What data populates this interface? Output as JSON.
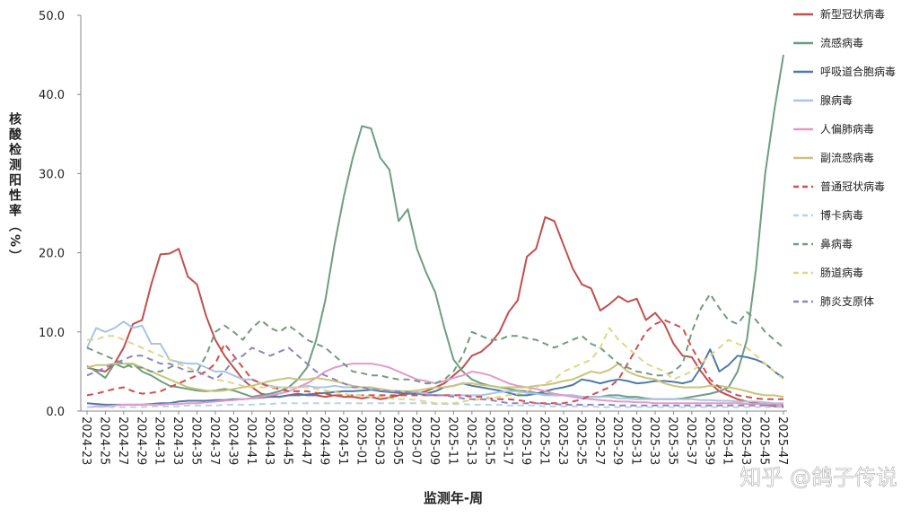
{
  "chart_data": {
    "type": "line",
    "y_label": "核酸检测阳性率（%）",
    "x_label": "监测年-周",
    "watermark": "知乎 @鸽子传说",
    "categories": [
      "2024-23",
      null,
      "2024-25",
      null,
      "2024-27",
      null,
      "2024-29",
      null,
      "2024-31",
      null,
      "2024-33",
      null,
      "2024-35",
      null,
      "2024-37",
      null,
      "2024-39",
      null,
      "2024-41",
      null,
      "2024-43",
      null,
      "2024-45",
      null,
      "2024-47",
      null,
      "2024-49",
      null,
      "2024-51",
      null,
      "2025-01",
      null,
      "2025-03",
      null,
      "2025-05",
      null,
      "2025-07",
      null,
      "2025-09",
      null,
      "2025-11",
      null,
      "2025-13",
      null,
      "2025-15",
      null,
      "2025-17",
      null,
      "2025-19",
      null,
      "2025-21",
      null,
      "2025-23",
      null,
      "2025-25",
      null,
      "2025-27",
      null,
      "2025-29",
      null,
      "2025-31",
      null,
      "2025-33",
      null,
      "2025-35",
      null,
      "2025-37",
      null,
      "2025-39",
      null,
      "2025-41",
      null,
      "2025-43",
      null,
      "2025-45",
      null,
      "2025-47"
    ],
    "ylim": [
      0,
      50
    ],
    "yticks": [
      {
        "value": 0,
        "label": "0.0"
      },
      {
        "value": 10,
        "label": "10.0"
      },
      {
        "value": 20,
        "label": "20.0"
      },
      {
        "value": 30,
        "label": "30.0"
      },
      {
        "value": 40,
        "label": "40.0"
      },
      {
        "value": 50,
        "label": "50.0"
      }
    ],
    "series": [
      {
        "name": "新型冠状病毒",
        "color": "#c0504d",
        "dash": false,
        "values": [
          5.5,
          5.2,
          5.0,
          6.0,
          8.0,
          11.0,
          11.5,
          16.0,
          19.8,
          19.9,
          20.5,
          17.0,
          16.0,
          12.0,
          9.0,
          7.0,
          5.5,
          4.0,
          3.0,
          2.2,
          2.0,
          1.8,
          2.0,
          2.2,
          2.0,
          2.0,
          1.8,
          2.0,
          1.8,
          1.8,
          1.6,
          1.8,
          1.5,
          1.7,
          2.0,
          2.2,
          2.2,
          2.5,
          3.0,
          3.5,
          4.5,
          5.5,
          7.0,
          7.5,
          8.5,
          10.0,
          12.5,
          14.0,
          19.5,
          20.5,
          24.5,
          24.0,
          21.0,
          18.0,
          16.0,
          15.5,
          12.7,
          13.5,
          14.5,
          13.8,
          14.2,
          11.5,
          12.4,
          11.0,
          8.5,
          7.0,
          6.8,
          5.0,
          3.5,
          2.5,
          2.0,
          1.5,
          1.2,
          1.0,
          0.8,
          0.6,
          0.5
        ]
      },
      {
        "name": "流感病毒",
        "color": "#6e9e80",
        "dash": false,
        "values": [
          5.7,
          5.0,
          4.2,
          6.0,
          5.5,
          6.0,
          5.0,
          4.5,
          3.8,
          3.2,
          3.0,
          2.8,
          2.6,
          2.5,
          2.6,
          2.8,
          2.6,
          2.2,
          1.8,
          2.0,
          2.2,
          2.5,
          3.0,
          4.0,
          5.5,
          9.0,
          14.0,
          21.0,
          27.0,
          32.0,
          36.0,
          35.7,
          32.0,
          30.5,
          24.0,
          25.5,
          20.5,
          17.5,
          15.0,
          10.5,
          6.5,
          5.0,
          4.0,
          3.5,
          3.2,
          3.0,
          2.8,
          2.6,
          2.5,
          2.3,
          2.2,
          2.0,
          2.0,
          2.0,
          1.8,
          1.8,
          1.8,
          2.0,
          2.0,
          1.8,
          1.8,
          1.6,
          1.5,
          1.5,
          1.5,
          1.6,
          1.8,
          2.0,
          2.2,
          2.5,
          3.0,
          5.0,
          9.0,
          18.0,
          30.0,
          38.0,
          45.0
        ]
      },
      {
        "name": "呼吸道合胞病毒",
        "color": "#4f7aa8",
        "dash": false,
        "values": [
          1.0,
          0.9,
          0.8,
          0.8,
          0.8,
          0.8,
          0.8,
          0.9,
          1.0,
          1.0,
          1.2,
          1.3,
          1.3,
          1.3,
          1.4,
          1.4,
          1.5,
          1.5,
          1.6,
          1.7,
          1.8,
          1.8,
          2.0,
          2.0,
          2.1,
          2.2,
          2.3,
          2.4,
          2.5,
          2.5,
          2.6,
          2.7,
          2.5,
          2.4,
          2.3,
          2.2,
          2.2,
          2.2,
          2.5,
          3.0,
          3.2,
          3.5,
          3.2,
          3.0,
          2.8,
          2.6,
          2.3,
          2.0,
          2.0,
          2.2,
          2.5,
          2.8,
          3.0,
          3.3,
          4.0,
          3.8,
          3.5,
          3.8,
          4.0,
          3.8,
          3.5,
          3.6,
          3.8,
          3.8,
          3.7,
          3.5,
          3.8,
          5.5,
          7.8,
          5.0,
          5.8,
          7.0,
          6.8,
          6.5,
          6.0,
          5.0,
          4.2
        ]
      },
      {
        "name": "腺病毒",
        "color": "#a9c4e4",
        "dash": false,
        "values": [
          8.0,
          10.5,
          10.0,
          10.5,
          11.3,
          10.5,
          10.8,
          8.5,
          8.5,
          6.5,
          6.2,
          6.0,
          6.0,
          5.5,
          5.0,
          5.0,
          4.5,
          4.0,
          4.0,
          3.5,
          3.2,
          3.0,
          3.0,
          3.0,
          3.2,
          3.0,
          3.0,
          3.2,
          3.0,
          3.0,
          3.0,
          2.8,
          2.8,
          2.6,
          2.5,
          2.5,
          2.4,
          2.2,
          2.0,
          2.0,
          2.0,
          2.0,
          2.0,
          2.0,
          2.2,
          2.4,
          2.5,
          2.5,
          2.3,
          2.2,
          2.0,
          2.0,
          2.0,
          2.0,
          1.8,
          1.8,
          1.8,
          1.8,
          1.6,
          1.6,
          1.5,
          1.5,
          1.5,
          1.5,
          1.5,
          1.5,
          1.5,
          1.4,
          1.4,
          1.3,
          1.3,
          1.2,
          1.2,
          1.2,
          1.1,
          1.0,
          1.0
        ]
      },
      {
        "name": "人偏肺病毒",
        "color": "#e49ac8",
        "dash": false,
        "values": [
          0.5,
          0.6,
          0.6,
          0.7,
          0.8,
          0.8,
          0.8,
          0.8,
          0.8,
          0.9,
          0.9,
          1.0,
          1.0,
          1.1,
          1.2,
          1.3,
          1.4,
          1.5,
          1.6,
          1.8,
          2.0,
          2.2,
          2.5,
          3.0,
          3.5,
          4.2,
          5.0,
          5.5,
          5.8,
          6.0,
          6.0,
          6.0,
          5.8,
          5.5,
          5.0,
          4.5,
          4.0,
          3.8,
          3.5,
          3.8,
          4.2,
          4.5,
          5.0,
          4.8,
          4.5,
          4.0,
          3.5,
          3.2,
          3.0,
          2.8,
          2.5,
          2.2,
          2.0,
          1.8,
          1.6,
          1.5,
          1.4,
          1.3,
          1.2,
          1.2,
          1.1,
          1.1,
          1.0,
          1.0,
          1.0,
          1.0,
          1.0,
          1.0,
          1.0,
          1.0,
          1.0,
          1.0,
          0.9,
          0.9,
          0.9,
          0.8,
          0.8
        ]
      },
      {
        "name": "副流感病毒",
        "color": "#c9c47a",
        "dash": false,
        "values": [
          5.5,
          5.8,
          5.8,
          6.0,
          6.0,
          6.0,
          5.5,
          5.0,
          4.5,
          4.0,
          3.5,
          3.0,
          2.8,
          2.6,
          2.5,
          2.6,
          2.8,
          3.0,
          3.2,
          3.5,
          3.8,
          4.0,
          4.2,
          4.0,
          4.0,
          4.2,
          4.0,
          3.8,
          3.5,
          3.2,
          3.0,
          3.0,
          2.8,
          2.6,
          2.5,
          2.5,
          2.6,
          2.8,
          3.0,
          3.0,
          3.2,
          3.5,
          3.5,
          3.3,
          3.2,
          3.0,
          3.0,
          3.0,
          3.0,
          3.2,
          3.3,
          3.5,
          3.8,
          4.0,
          4.5,
          5.0,
          4.8,
          5.2,
          6.0,
          5.0,
          4.5,
          4.2,
          4.0,
          3.5,
          3.2,
          3.0,
          3.0,
          3.0,
          3.2,
          3.2,
          3.0,
          2.8,
          2.5,
          2.2,
          2.0,
          2.0,
          1.8
        ]
      },
      {
        "name": "普通冠状病毒",
        "color": "#d0504d",
        "dash": true,
        "values": [
          2.0,
          2.2,
          2.5,
          2.8,
          3.0,
          2.5,
          2.2,
          2.3,
          2.5,
          3.0,
          3.5,
          4.0,
          4.5,
          5.0,
          6.0,
          8.5,
          7.0,
          5.5,
          4.0,
          3.5,
          3.0,
          2.8,
          2.5,
          2.5,
          2.5,
          2.3,
          2.2,
          2.0,
          2.0,
          2.0,
          2.0,
          2.0,
          2.0,
          2.0,
          2.0,
          2.0,
          2.0,
          2.0,
          2.0,
          2.0,
          2.0,
          2.0,
          1.8,
          1.8,
          1.6,
          1.5,
          1.5,
          1.4,
          1.2,
          1.0,
          1.0,
          1.0,
          1.0,
          1.2,
          1.5,
          2.0,
          2.5,
          3.0,
          4.0,
          6.0,
          8.0,
          10.0,
          11.0,
          11.5,
          11.0,
          10.5,
          8.0,
          6.0,
          4.0,
          3.0,
          2.5,
          2.0,
          1.8,
          1.6,
          1.5,
          1.5,
          1.5
        ]
      },
      {
        "name": "博卡病毒",
        "color": "#b7d3ec",
        "dash": true,
        "values": [
          0.5,
          0.5,
          0.5,
          0.5,
          0.5,
          0.5,
          0.5,
          0.6,
          0.6,
          0.6,
          0.6,
          0.7,
          0.7,
          0.7,
          0.7,
          0.8,
          0.8,
          0.8,
          0.8,
          0.9,
          0.9,
          1.0,
          1.0,
          1.0,
          1.0,
          1.0,
          1.0,
          1.0,
          1.0,
          1.0,
          1.0,
          1.0,
          1.0,
          1.0,
          1.0,
          1.0,
          1.0,
          1.0,
          0.9,
          0.9,
          0.9,
          0.9,
          0.8,
          0.8,
          0.8,
          0.8,
          0.7,
          0.7,
          0.7,
          0.7,
          0.6,
          0.6,
          0.6,
          0.6,
          0.6,
          0.6,
          0.5,
          0.5,
          0.5,
          0.5,
          0.5,
          0.5,
          0.5,
          0.5,
          0.5,
          0.5,
          0.5,
          0.5,
          0.5,
          0.5,
          0.5,
          0.5,
          0.5,
          0.5,
          0.5,
          0.5,
          0.5
        ]
      },
      {
        "name": "鼻病毒",
        "color": "#6f9c80",
        "dash": true,
        "values": [
          8.0,
          7.5,
          7.0,
          6.5,
          6.0,
          5.5,
          5.5,
          5.0,
          5.0,
          5.5,
          6.0,
          5.5,
          5.0,
          7.0,
          10.0,
          10.8,
          10.0,
          9.0,
          10.5,
          11.5,
          10.5,
          10.0,
          10.8,
          10.0,
          9.0,
          8.5,
          8.0,
          7.0,
          6.0,
          5.0,
          4.8,
          4.5,
          4.5,
          4.2,
          4.0,
          4.0,
          3.8,
          3.5,
          3.5,
          4.0,
          5.0,
          7.0,
          10.0,
          9.5,
          9.0,
          9.0,
          9.5,
          9.5,
          9.2,
          9.0,
          8.5,
          8.0,
          8.5,
          9.0,
          9.5,
          8.5,
          8.0,
          7.0,
          6.0,
          5.5,
          5.0,
          4.8,
          4.5,
          4.5,
          5.0,
          6.0,
          10.0,
          13.0,
          14.8,
          13.0,
          11.5,
          11.0,
          12.5,
          11.5,
          10.0,
          9.0,
          8.0
        ]
      },
      {
        "name": "肠道病毒",
        "color": "#ddd68a",
        "dash": true,
        "values": [
          9.0,
          9.0,
          9.5,
          9.5,
          9.0,
          8.5,
          8.0,
          7.5,
          7.0,
          6.5,
          6.0,
          5.5,
          5.0,
          4.5,
          4.0,
          3.8,
          3.5,
          3.2,
          3.0,
          3.0,
          3.0,
          3.0,
          3.0,
          3.0,
          3.0,
          2.8,
          2.6,
          2.4,
          2.2,
          2.0,
          2.0,
          1.8,
          1.8,
          1.6,
          1.5,
          1.5,
          1.4,
          1.2,
          1.0,
          1.0,
          1.0,
          1.2,
          1.4,
          1.5,
          1.6,
          1.8,
          2.0,
          2.2,
          2.5,
          3.0,
          3.5,
          4.0,
          5.0,
          5.5,
          6.0,
          6.5,
          8.0,
          10.5,
          9.0,
          8.0,
          7.0,
          6.0,
          5.5,
          5.0,
          4.0,
          4.5,
          5.0,
          6.0,
          7.0,
          8.0,
          9.0,
          8.5,
          8.0,
          7.0,
          6.0,
          5.0,
          4.0
        ]
      },
      {
        "name": "肺炎支原体",
        "color": "#8e85c0",
        "dash": true,
        "values": [
          4.5,
          5.0,
          5.5,
          6.0,
          6.5,
          7.0,
          7.0,
          6.5,
          6.0,
          6.0,
          5.5,
          5.0,
          5.0,
          4.5,
          4.0,
          5.0,
          6.5,
          7.0,
          8.0,
          7.5,
          7.0,
          7.5,
          8.0,
          7.0,
          6.0,
          5.0,
          4.5,
          4.0,
          3.5,
          3.0,
          3.0,
          2.8,
          2.6,
          2.5,
          2.5,
          2.4,
          2.2,
          2.0,
          2.0,
          2.0,
          1.8,
          1.6,
          1.5,
          1.5,
          1.4,
          1.2,
          1.0,
          1.0,
          1.0,
          1.0,
          0.9,
          0.9,
          0.8,
          0.8,
          0.8,
          0.8,
          0.8,
          0.8,
          0.7,
          0.7,
          0.7,
          0.7,
          0.7,
          0.7,
          0.7,
          0.7,
          0.7,
          0.7,
          0.7,
          0.7,
          0.7,
          0.7,
          0.7,
          0.7,
          0.7,
          0.7,
          0.7
        ]
      }
    ]
  }
}
